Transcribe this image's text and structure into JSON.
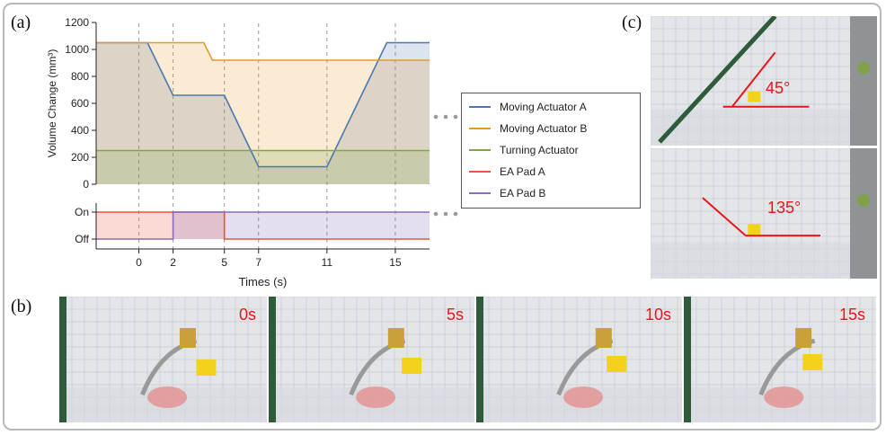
{
  "panels": {
    "a": "(a)",
    "b": "(b)",
    "c": "(c)"
  },
  "chart_data": [
    {
      "type": "line",
      "ylabel": "Volume Change (mm³)",
      "xlabel": "",
      "ylim": [
        0,
        1200
      ],
      "yticks": [
        0,
        200,
        400,
        600,
        800,
        1000,
        1200
      ],
      "xlim": [
        -2.5,
        17
      ],
      "series": [
        {
          "name": "Moving Actuator A",
          "color": "#4d76b0",
          "x": [
            -2.5,
            0.5,
            2,
            5,
            7,
            11,
            14.5,
            17
          ],
          "y": [
            1050,
            1050,
            660,
            660,
            130,
            130,
            1050,
            1050
          ]
        },
        {
          "name": "Moving Actuator B",
          "color": "#e39a2a",
          "x": [
            -2.5,
            3.8,
            4.3,
            17
          ],
          "y": [
            1050,
            1050,
            920,
            920
          ]
        },
        {
          "name": "Turning Actuator",
          "color": "#7fa642",
          "x": [
            -2.5,
            17
          ],
          "y": [
            250,
            250
          ]
        }
      ],
      "legend": "right"
    },
    {
      "type": "line",
      "xlabel": "Times (s)",
      "ylabel": "",
      "xticks": [
        0,
        2,
        5,
        7,
        11,
        15
      ],
      "xlim": [
        -2.5,
        17
      ],
      "ycategories": [
        "Off",
        "On"
      ],
      "series": [
        {
          "name": "EA Pad A",
          "color": "#e8553a",
          "x": [
            -2.5,
            2,
            2,
            5,
            5,
            17
          ],
          "y": [
            "On",
            "On",
            "On",
            "On",
            "Off",
            "Off"
          ]
        },
        {
          "name": "EA Pad B",
          "color": "#8a6bbf",
          "x": [
            -2.5,
            2,
            2,
            17
          ],
          "y": [
            "Off",
            "Off",
            "On",
            "On"
          ]
        }
      ]
    }
  ],
  "legend_items": [
    {
      "name": "Moving Actuator A",
      "color": "#4d76b0"
    },
    {
      "name": "Moving Actuator B",
      "color": "#e39a2a"
    },
    {
      "name": "Turning Actuator",
      "color": "#7fa642"
    },
    {
      "name": "EA Pad A",
      "color": "#e8553a"
    },
    {
      "name": "EA Pad B",
      "color": "#8a6bbf"
    }
  ],
  "photos_b": [
    {
      "time": "0s"
    },
    {
      "time": "5s"
    },
    {
      "time": "10s"
    },
    {
      "time": "15s"
    }
  ],
  "photos_c": [
    {
      "angle": "45°"
    },
    {
      "angle": "135°"
    }
  ]
}
